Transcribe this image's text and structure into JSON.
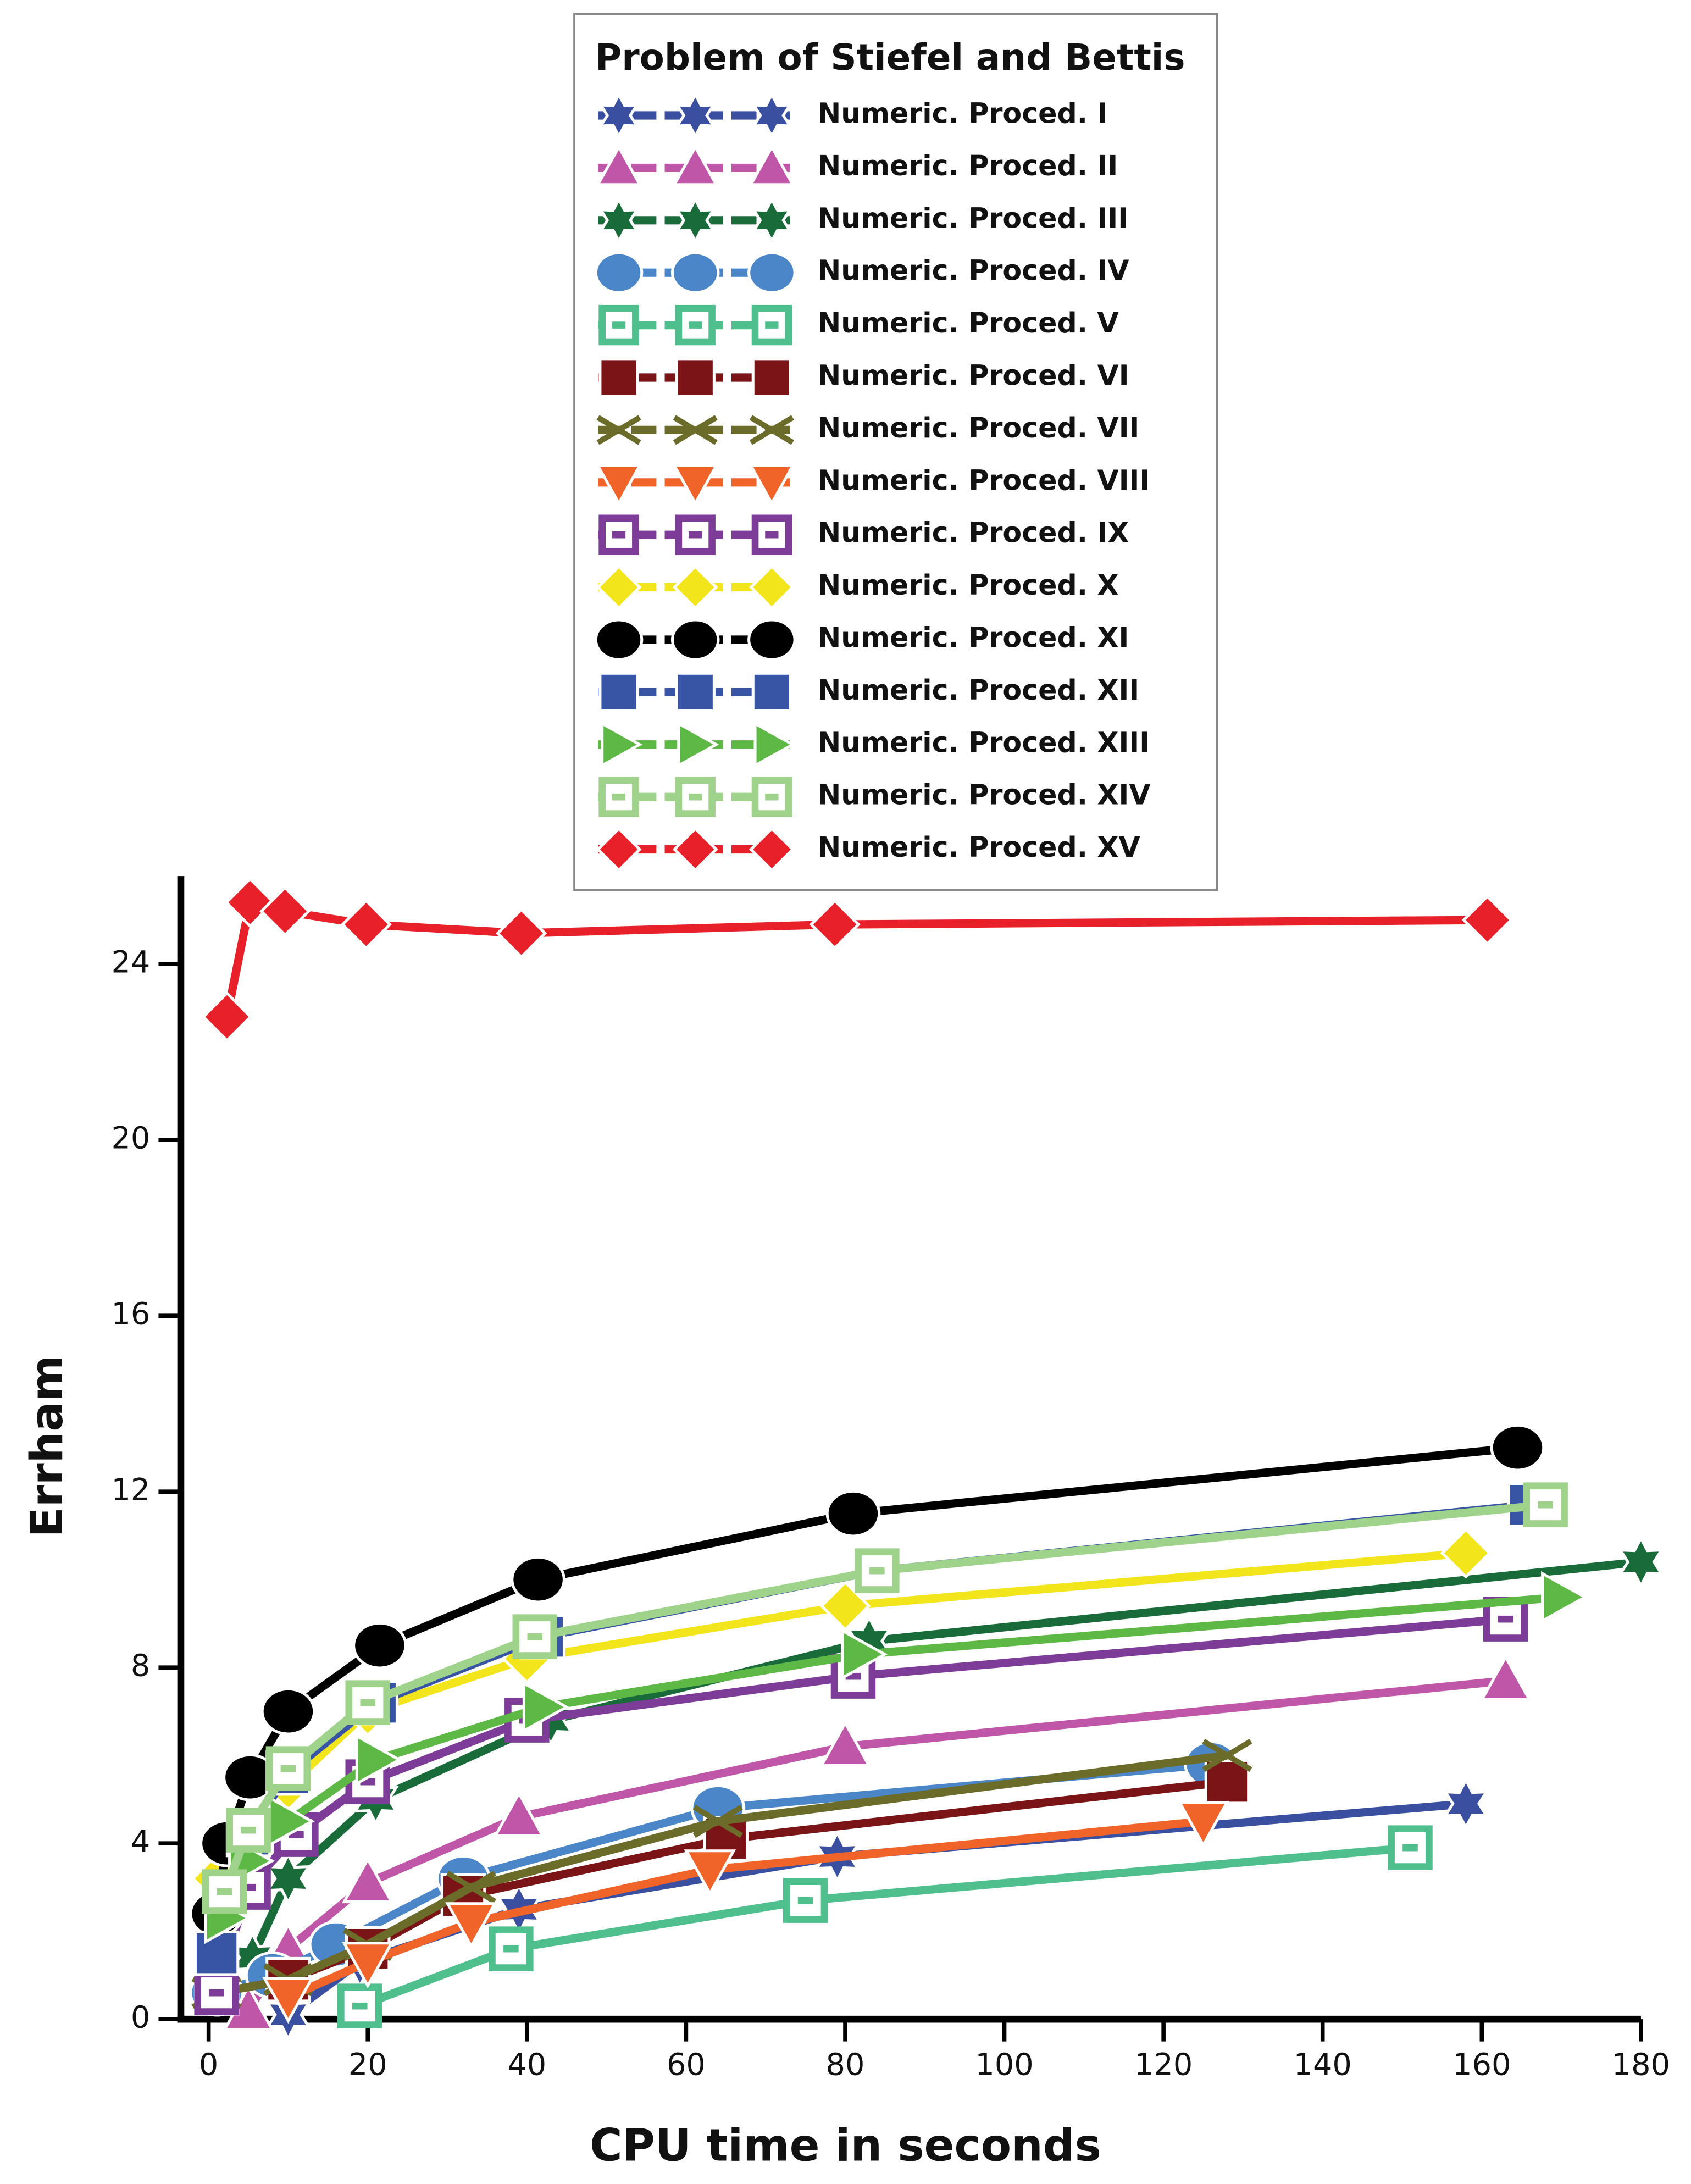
{
  "chart_data": {
    "type": "line",
    "legend_title": "Problem of Stiefel and Bettis",
    "xlabel": "CPU time in seconds",
    "ylabel": "Errham",
    "xlim": [
      -3.5,
      180
    ],
    "ylim": [
      0,
      26
    ],
    "xticks": [
      0,
      20,
      40,
      60,
      80,
      100,
      120,
      140,
      160,
      180
    ],
    "yticks": [
      0,
      4,
      8,
      12,
      16,
      20,
      24
    ],
    "legend": "top",
    "series": [
      {
        "name": "Numeric. Proced. I",
        "color": "#3a4fa0",
        "marker": "star",
        "x": [
          10,
          19,
          39,
          79,
          158
        ],
        "values": [
          0.1,
          1.3,
          2.5,
          3.7,
          4.9
        ]
      },
      {
        "name": "Numeric. Proced. II",
        "color": "#c056a8",
        "marker": "triangle",
        "x": [
          5,
          10,
          20,
          39,
          80,
          163
        ],
        "values": [
          0.2,
          1.6,
          3.1,
          4.6,
          6.2,
          7.7
        ]
      },
      {
        "name": "Numeric. Proced. III",
        "color": "#1a6b3a",
        "marker": "star",
        "x": [
          5.5,
          10,
          21,
          43,
          83,
          180
        ],
        "values": [
          1.4,
          3.2,
          5.0,
          6.8,
          8.6,
          10.4
        ]
      },
      {
        "name": "Numeric. Proced. IV",
        "color": "#4a86c8",
        "marker": "circle",
        "x": [
          1,
          8,
          16,
          32,
          64,
          126
        ],
        "values": [
          0.6,
          1.0,
          1.7,
          3.2,
          4.8,
          5.8
        ]
      },
      {
        "name": "Numeric. Proced. V",
        "color": "#4fc08d",
        "marker": "square-open",
        "x": [
          19,
          38,
          75,
          151
        ],
        "values": [
          0.3,
          1.6,
          2.7,
          3.9
        ]
      },
      {
        "name": "Numeric. Proced. VI",
        "color": "#7b1416",
        "marker": "square",
        "x": [
          1,
          10,
          20,
          32,
          65,
          128
        ],
        "values": [
          0.6,
          0.9,
          1.6,
          2.8,
          4.1,
          5.4
        ]
      },
      {
        "name": "Numeric. Proced. VII",
        "color": "#6b6b2a",
        "marker": "x",
        "x": [
          1,
          10,
          20,
          33,
          64,
          128
        ],
        "values": [
          0.6,
          0.9,
          1.7,
          3.0,
          4.5,
          6.0
        ]
      },
      {
        "name": "Numeric. Proced. VIII",
        "color": "#f0642a",
        "marker": "triangle-down",
        "x": [
          10,
          20,
          33,
          63,
          125
        ],
        "values": [
          0.5,
          1.3,
          2.2,
          3.4,
          4.5
        ]
      },
      {
        "name": "Numeric. Proced. IX",
        "color": "#7d3c98",
        "marker": "square-open",
        "x": [
          1,
          5,
          11,
          20,
          40,
          81,
          163
        ],
        "values": [
          0.6,
          3.0,
          4.2,
          5.4,
          6.8,
          7.8,
          9.1
        ]
      },
      {
        "name": "Numeric. Proced. X",
        "color": "#f2e51c",
        "marker": "diamond",
        "x": [
          1,
          5,
          10,
          20,
          40,
          80,
          158
        ],
        "values": [
          3.2,
          4.0,
          5.3,
          7.0,
          8.2,
          9.4,
          10.6
        ]
      },
      {
        "name": "Numeric. Proced. XI",
        "color": "#000000",
        "marker": "circle",
        "x": [
          1,
          2.3,
          5.2,
          10,
          21.5,
          41.4,
          81,
          164.5
        ],
        "values": [
          2.4,
          4.0,
          5.5,
          7.0,
          8.5,
          10.0,
          11.5,
          13.0
        ]
      },
      {
        "name": "Numeric. Proced. XII",
        "color": "#3855a5",
        "marker": "square",
        "x": [
          1,
          5,
          10,
          21,
          42,
          84,
          166
        ],
        "values": [
          1.5,
          4.2,
          5.6,
          7.2,
          8.7,
          10.2,
          11.7
        ]
      },
      {
        "name": "Numeric. Proced. XIII",
        "color": "#5db846",
        "marker": "triangle-right",
        "x": [
          2,
          5,
          10,
          21,
          42,
          82,
          170
        ],
        "values": [
          2.3,
          3.6,
          4.5,
          5.9,
          7.1,
          8.3,
          9.6
        ]
      },
      {
        "name": "Numeric. Proced. XIV",
        "color": "#9fd28a",
        "marker": "square-open",
        "x": [
          2,
          5,
          10,
          20,
          41,
          84,
          168
        ],
        "values": [
          2.9,
          4.3,
          5.7,
          7.2,
          8.7,
          10.2,
          11.7
        ]
      },
      {
        "name": "Numeric. Proced. XV",
        "color": "#e8202a",
        "marker": "diamond",
        "x": [
          2.3,
          5.2,
          9.6,
          19.8,
          39.3,
          78.7,
          160.7
        ],
        "values": [
          22.8,
          25.4,
          25.2,
          24.9,
          24.7,
          24.9,
          25.0
        ]
      }
    ]
  }
}
